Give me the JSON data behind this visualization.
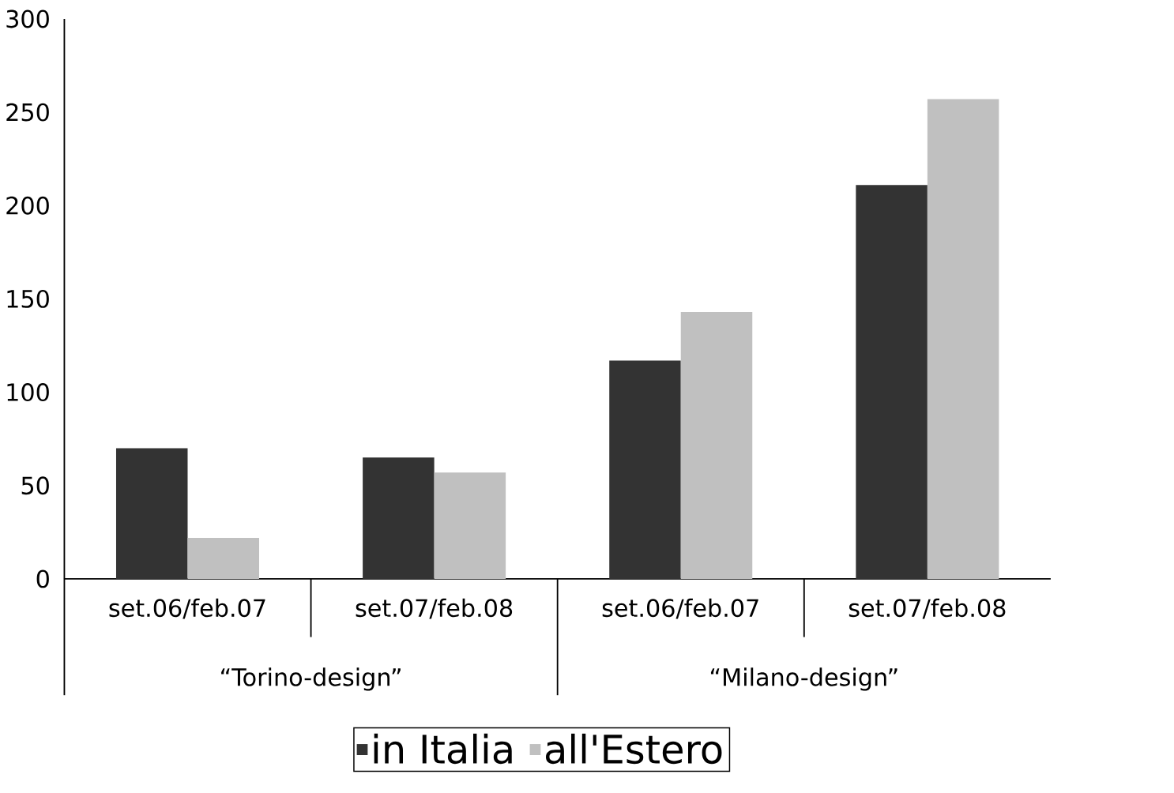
{
  "chart_data": {
    "type": "bar",
    "categories": [
      "set.06/feb.07",
      "set.07/feb.08",
      "set.06/feb.07",
      "set.07/feb.08"
    ],
    "series": [
      {
        "name": "in Italia",
        "color": "#333333",
        "values": [
          70,
          65,
          117,
          211
        ]
      },
      {
        "name": "all'Estero",
        "color": "#c0c0c0",
        "values": [
          22,
          57,
          143,
          257
        ]
      }
    ],
    "ylim": [
      0,
      300
    ],
    "yticks": [
      0,
      50,
      100,
      150,
      200,
      250,
      300
    ],
    "legend": "bottom",
    "annotations": [
      "“Torino-design”",
      "“Milano-design”"
    ]
  }
}
